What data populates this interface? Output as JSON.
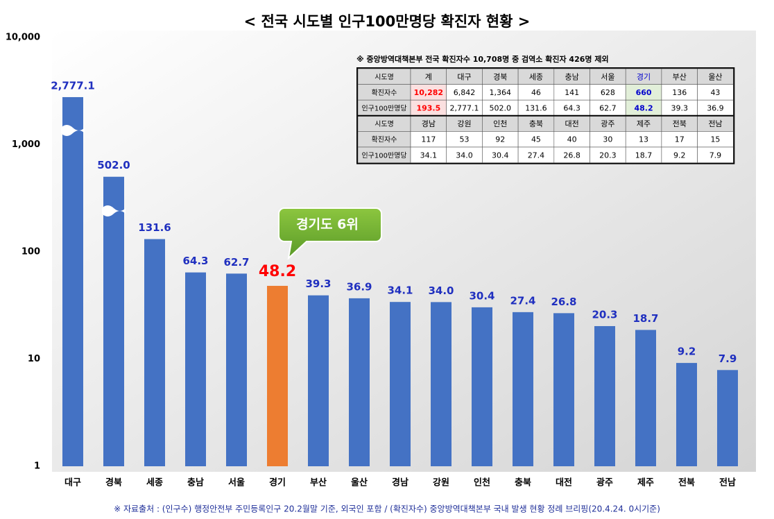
{
  "chart_data": {
    "type": "bar",
    "title": "< 전국 시도별 인구100만명당 확진자 현황 >",
    "categories": [
      "대구",
      "경북",
      "세종",
      "충남",
      "서울",
      "경기",
      "부산",
      "울산",
      "경남",
      "강원",
      "인천",
      "충북",
      "대전",
      "광주",
      "제주",
      "전북",
      "전남"
    ],
    "values": [
      2777.1,
      502.0,
      131.6,
      64.3,
      62.7,
      48.2,
      39.3,
      36.9,
      34.1,
      34.0,
      30.4,
      27.4,
      26.8,
      20.3,
      18.7,
      9.2,
      7.9
    ],
    "value_labels": [
      "2,777.1",
      "502.0",
      "131.6",
      "64.3",
      "62.7",
      "48.2",
      "39.3",
      "36.9",
      "34.1",
      "34.0",
      "30.4",
      "27.4",
      "26.8",
      "20.3",
      "18.7",
      "9.2",
      "7.9"
    ],
    "colors": [
      "#4472c4",
      "#4472c4",
      "#4472c4",
      "#4472c4",
      "#4472c4",
      "#ed7d31",
      "#4472c4",
      "#4472c4",
      "#4472c4",
      "#4472c4",
      "#4472c4",
      "#4472c4",
      "#4472c4",
      "#4472c4",
      "#4472c4",
      "#4472c4",
      "#4472c4"
    ],
    "ylim": [
      1,
      10000
    ],
    "yticks": [
      1,
      10,
      100,
      {
        "value": 1000,
        "label": "1,000"
      },
      {
        "value": 10000,
        "label": "10,000"
      }
    ],
    "log_scale": true,
    "grid": false,
    "annotation": "경기도 6위",
    "source": "※ 자료출처 : (인구수) 행정안전부 주민등록인구 20.2월말 기준, 외국인 포함 / (확진자수) 중앙방역대책본부 국내 발생 현황 정례 브리핑(20.4.24. 0시기준)",
    "table": {
      "note": "※ 중앙방역대책본부 전국 확진자수 10,708명 중 검역소 확진자 426명 제외",
      "rows": [
        [
          "시도명",
          "계",
          "대구",
          "경북",
          "세종",
          "충남",
          "서울",
          "경기",
          "부산",
          "울산"
        ],
        [
          "확진자수",
          "10,282",
          "6,842",
          "1,364",
          "46",
          "141",
          "628",
          "660",
          "136",
          "43"
        ],
        [
          "인구100만명당",
          "193.5",
          "2,777.1",
          "502.0",
          "131.6",
          "64.3",
          "62.7",
          "48.2",
          "39.3",
          "36.9"
        ],
        [
          "시도명",
          "경남",
          "강원",
          "인천",
          "충북",
          "대전",
          "광주",
          "제주",
          "전북",
          "전남"
        ],
        [
          "확진자수",
          "117",
          "53",
          "92",
          "45",
          "40",
          "30",
          "13",
          "17",
          "15"
        ],
        [
          "인구100만명당",
          "34.1",
          "34.0",
          "30.4",
          "27.4",
          "26.8",
          "20.3",
          "18.7",
          "9.2",
          "7.9"
        ]
      ]
    }
  }
}
